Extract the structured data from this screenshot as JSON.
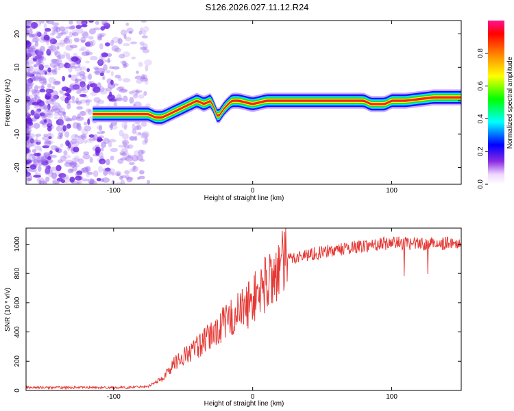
{
  "figure": {
    "title": "S126.2026.027.11.12.R24"
  },
  "colors": {
    "snr_line": "#e53935",
    "frame": "#000000",
    "cloud": "#a070f0",
    "cloud_dark": "#6a1fe0"
  },
  "chart_data": [
    {
      "type": "heatmap",
      "name": "spectrogram",
      "xlabel": "Height of straight line (km)",
      "ylabel": "Frequency (Hz)",
      "xlim": [
        -163,
        150
      ],
      "ylim": [
        -25,
        24
      ],
      "x_ticks": [
        -100,
        0,
        100
      ],
      "x_tick_labels": [
        "-100",
        "0",
        "100"
      ],
      "y_ticks": [
        -20,
        -10,
        0,
        10,
        20
      ],
      "y_tick_labels": [
        "-20",
        "-10",
        "0",
        "10",
        "20"
      ],
      "noise_region_x": [
        -163,
        -75
      ],
      "ridge": {
        "x": [
          -115,
          -110,
          -95,
          -85,
          -75,
          -70,
          -65,
          -60,
          -55,
          -50,
          -45,
          -40,
          -35,
          -30,
          -25,
          -20,
          -15,
          -10,
          0,
          10,
          20,
          40,
          60,
          80,
          85,
          90,
          95,
          100,
          110,
          130,
          150
        ],
        "freq": [
          -4,
          -4,
          -4,
          -4,
          -4,
          -5,
          -5,
          -4,
          -3,
          -2,
          -1,
          0,
          -1,
          0,
          -5,
          -2,
          0,
          0,
          -1,
          0,
          0,
          0,
          0,
          0,
          -1,
          -1,
          -1,
          0,
          0,
          1,
          1
        ]
      },
      "colorbar": {
        "label": "Normalized spectral amplitude",
        "range": [
          0,
          1
        ],
        "ticks": [
          0.0,
          0.2,
          0.4,
          0.6,
          0.8
        ],
        "tick_labels": [
          "0.0",
          "0.2",
          "0.4",
          "0.6",
          "0.8"
        ]
      }
    },
    {
      "type": "line",
      "name": "snr",
      "xlabel": "Height of straight line (km)",
      "ylabel": "SNR (10 * v/v)",
      "xlim": [
        -163,
        150
      ],
      "ylim": [
        0,
        1110
      ],
      "x_ticks": [
        -100,
        0,
        100
      ],
      "x_tick_labels": [
        "-100",
        "0",
        "100"
      ],
      "y_ticks": [
        0,
        200,
        400,
        600,
        800,
        1000
      ],
      "y_tick_labels": [
        "0",
        "200",
        "400",
        "600",
        "800",
        "1000"
      ],
      "trend": {
        "x": [
          -163,
          -120,
          -90,
          -75,
          -65,
          -55,
          -45,
          -35,
          -25,
          -15,
          -5,
          5,
          15,
          25,
          40,
          60,
          80,
          100,
          120,
          150
        ],
        "y": [
          20,
          20,
          20,
          30,
          80,
          200,
          260,
          330,
          420,
          500,
          570,
          680,
          790,
          900,
          930,
          960,
          990,
          1010,
          1000,
          1010
        ]
      },
      "series": [
        {
          "name": "SNR",
          "color": "#e53935"
        }
      ]
    }
  ]
}
